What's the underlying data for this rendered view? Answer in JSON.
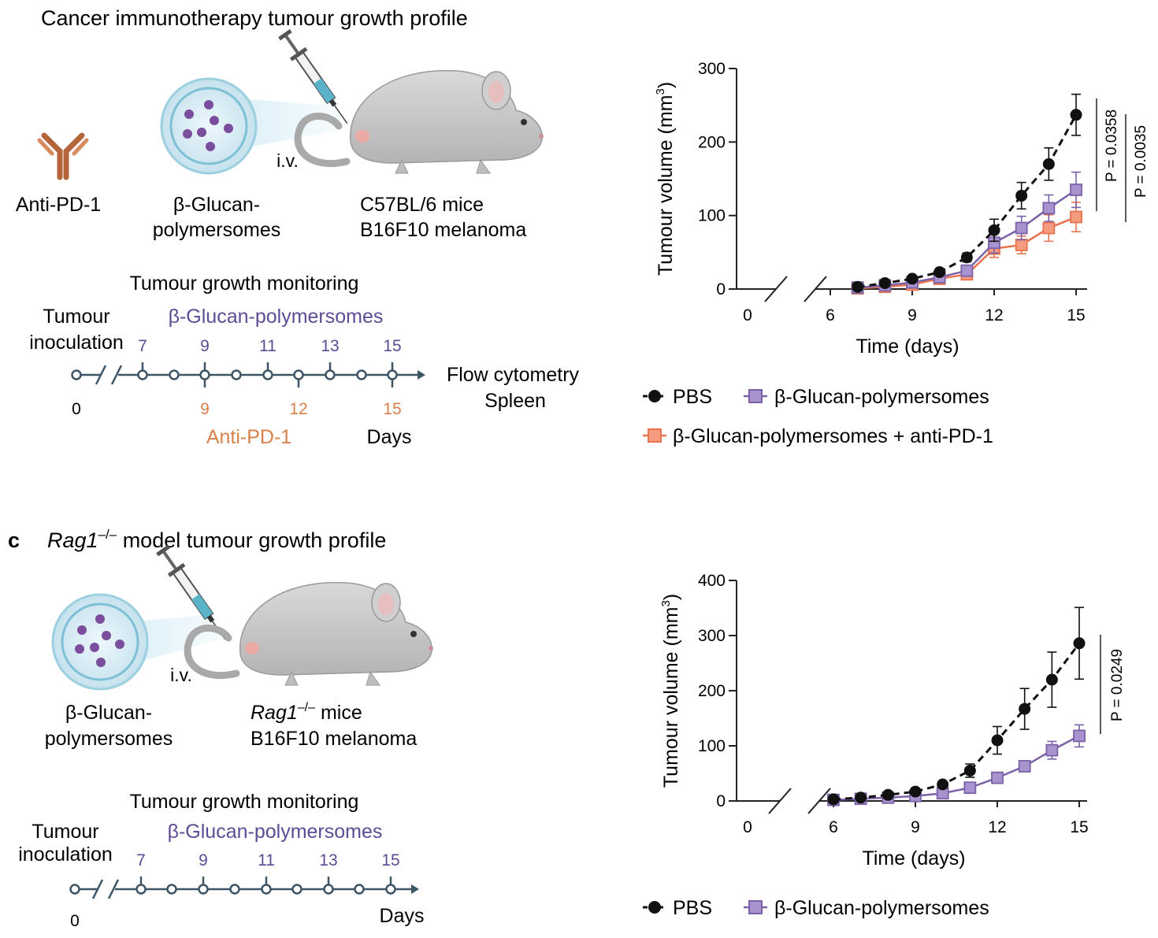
{
  "panel_b": {
    "title": "Cancer immunotherapy tumour growth profile",
    "antibody_label": "Anti-PD-1",
    "particle_label_1": "β-Glucan-",
    "particle_label_2": "polymersomes",
    "route": "i.v.",
    "mice_label_1": "C57BL/6 mice",
    "mice_label_2": "B16F10 melanoma",
    "timeline": {
      "title": "Tumour growth monitoring",
      "start_label_1": "Tumour",
      "start_label_2": "inoculation",
      "treatment_label": "β-Glucan-polymersomes",
      "treatment_days": [
        "7",
        "9",
        "11",
        "13",
        "15"
      ],
      "start_day": "0",
      "antipd1_days": [
        "9",
        "12",
        "15"
      ],
      "antipd1_label": "Anti-PD-1",
      "days_label": "Days",
      "endpoint_1": "Flow cytometry",
      "endpoint_2": "Spleen"
    },
    "legend": {
      "pbs": "PBS",
      "bgp": "β-Glucan-polymersomes",
      "combo": "β-Glucan-polymersomes + anti-PD-1"
    },
    "pvalues": [
      "P = 0.0358",
      "P = 0.0035"
    ]
  },
  "panel_c": {
    "letter": "c",
    "title_italic": "Rag1",
    "title_sup": "–/–",
    "title_rest": " model tumour growth profile",
    "particle_label_1": "β-Glucan-",
    "particle_label_2": "polymersomes",
    "route": "i.v.",
    "mice_italic": "Rag1",
    "mice_sup": "–/–",
    "mice_rest": " mice",
    "mice_label_2": "B16F10 melanoma",
    "timeline": {
      "title": "Tumour growth monitoring",
      "start_label_1": "Tumour",
      "start_label_2": "inoculation",
      "treatment_label": "β-Glucan-polymersomes",
      "treatment_days": [
        "7",
        "9",
        "11",
        "13",
        "15"
      ],
      "start_day": "0",
      "days_label": "Days"
    },
    "legend": {
      "pbs": "PBS",
      "bgp": "β-Glucan-polymersomes"
    },
    "pvalues": [
      "P = 0.0249"
    ]
  },
  "colors": {
    "pbs": "#111111",
    "bgp": "#7b62a8",
    "bgp_fill": "#a893cf",
    "combo": "#e8734f",
    "combo_fill": "#f59c80",
    "treatment_text": "#5e4b96",
    "antipd1_text": "#d9814a",
    "axis": "#222222"
  },
  "chart_data": [
    {
      "type": "line",
      "title": "",
      "xlabel": "Time (days)",
      "ylabel": "Tumour volume (mm3)",
      "xlim": [
        0,
        15
      ],
      "ylim": [
        0,
        300
      ],
      "xticks": [
        0,
        6,
        9,
        12,
        15
      ],
      "yticks": [
        0,
        100,
        200,
        300
      ],
      "x": [
        7,
        8,
        9,
        10,
        11,
        12,
        13,
        14,
        15
      ],
      "series": [
        {
          "name": "PBS",
          "values": [
            3,
            8,
            14,
            23,
            43,
            80,
            127,
            170,
            237
          ],
          "errors": [
            2,
            2,
            3,
            4,
            6,
            15,
            18,
            22,
            28
          ],
          "style": "dashed",
          "marker": "circle",
          "color_key": "pbs"
        },
        {
          "name": "β-Glucan-polymersomes",
          "values": [
            2,
            5,
            9,
            16,
            25,
            63,
            83,
            110,
            135
          ],
          "errors": [
            1,
            2,
            3,
            4,
            5,
            14,
            16,
            18,
            24
          ],
          "style": "solid",
          "marker": "square",
          "color_key": "bgp"
        },
        {
          "name": "β-Glucan-polymersomes + anti-PD-1",
          "values": [
            1,
            3,
            6,
            14,
            20,
            55,
            60,
            83,
            98
          ],
          "errors": [
            1,
            2,
            2,
            4,
            5,
            12,
            12,
            18,
            20
          ],
          "style": "solid",
          "marker": "square",
          "color_key": "combo"
        }
      ]
    },
    {
      "type": "line",
      "title": "",
      "xlabel": "Time (days)",
      "ylabel": "Tumour volume (mm3)",
      "xlim": [
        0,
        15
      ],
      "ylim": [
        0,
        400
      ],
      "xticks": [
        0,
        6,
        9,
        12,
        15
      ],
      "yticks": [
        0,
        100,
        200,
        300,
        400
      ],
      "x": [
        6,
        7,
        8,
        9,
        10,
        11,
        12,
        13,
        14,
        15
      ],
      "series": [
        {
          "name": "PBS",
          "values": [
            3,
            6,
            11,
            17,
            30,
            55,
            110,
            167,
            220,
            286
          ],
          "errors": [
            2,
            2,
            3,
            4,
            5,
            12,
            25,
            37,
            50,
            65
          ],
          "style": "dashed",
          "marker": "circle",
          "color_key": "pbs"
        },
        {
          "name": "β-Glucan-polymersomes",
          "values": [
            2,
            4,
            6,
            9,
            14,
            24,
            42,
            63,
            92,
            118
          ],
          "errors": [
            1,
            1,
            2,
            2,
            3,
            5,
            7,
            10,
            16,
            20
          ],
          "style": "solid",
          "marker": "square",
          "color_key": "bgp"
        }
      ]
    }
  ]
}
